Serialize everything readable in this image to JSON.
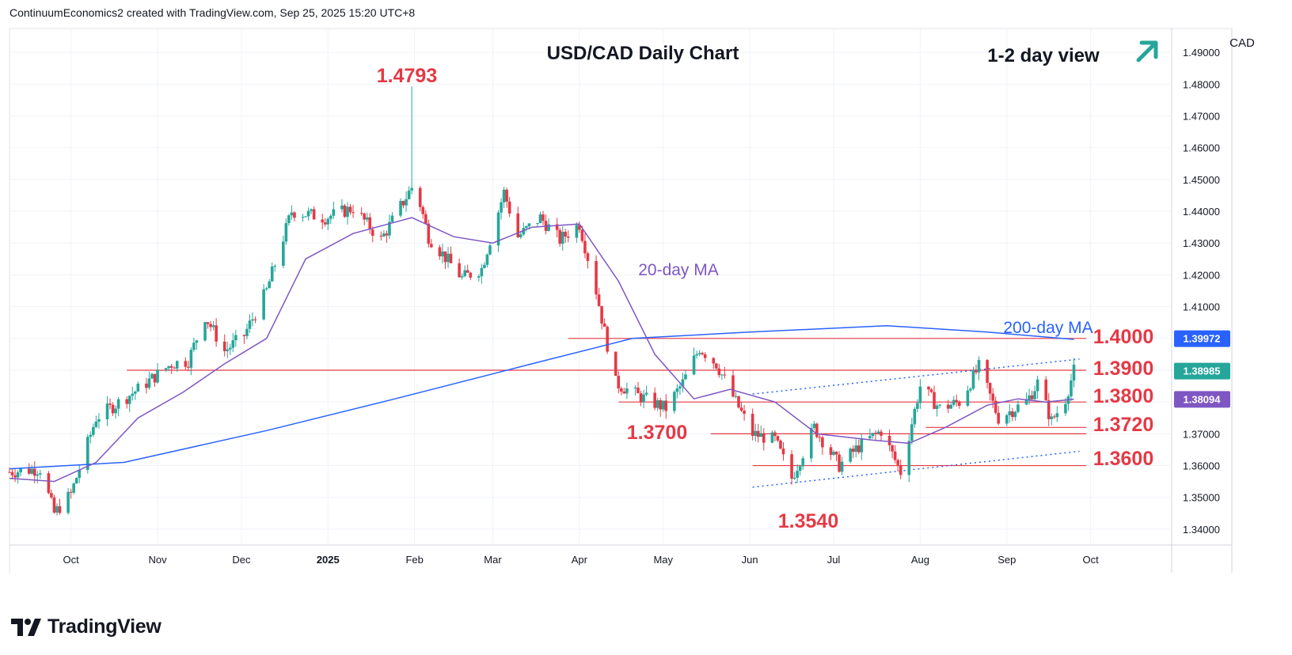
{
  "header": {
    "attribution": "ContinuumEconomics2 created with TradingView.com, Sep 25, 2025 15:20 UTC+8"
  },
  "footer": {
    "brand": "TradingView"
  },
  "colors": {
    "up": "#26a69a",
    "down": "#e53945",
    "ma20": "#7e57c2",
    "ma200": "#2962ff",
    "level": "#e53945",
    "trend": "#2962ff",
    "arrow": "#26a69a"
  },
  "chart_data": {
    "type": "candlestick",
    "title": "USD/CAD Daily Chart",
    "subtitle": "1-2 day view",
    "currency_label": "CAD",
    "ylim": [
      1.335,
      1.4975
    ],
    "y_ticks": [
      "1.34000",
      "1.35000",
      "1.36000",
      "1.37000",
      "1.38000",
      "1.39000",
      "1.40000",
      "1.41000",
      "1.42000",
      "1.43000",
      "1.44000",
      "1.45000",
      "1.46000",
      "1.47000",
      "1.48000",
      "1.49000"
    ],
    "x_ticks": [
      {
        "label": "Oct",
        "date": "2024-10-01"
      },
      {
        "label": "Nov",
        "date": "2024-11-01"
      },
      {
        "label": "Dec",
        "date": "2024-12-01"
      },
      {
        "label": "2025",
        "date": "2025-01-01",
        "bold": true
      },
      {
        "label": "Feb",
        "date": "2025-02-01"
      },
      {
        "label": "Mar",
        "date": "2025-03-01"
      },
      {
        "label": "Apr",
        "date": "2025-04-01"
      },
      {
        "label": "May",
        "date": "2025-05-01"
      },
      {
        "label": "Jun",
        "date": "2025-06-01"
      },
      {
        "label": "Jul",
        "date": "2025-07-01"
      },
      {
        "label": "Aug",
        "date": "2025-08-01"
      },
      {
        "label": "Sep",
        "date": "2025-09-01"
      },
      {
        "label": "Oct",
        "date": "2025-10-01"
      }
    ],
    "date_range": [
      "2024-09-09",
      "2025-10-30"
    ],
    "close_path": [
      [
        "2024-09-09",
        1.358
      ],
      [
        "2024-09-20",
        1.359
      ],
      [
        "2024-09-25",
        1.345
      ],
      [
        "2024-10-01",
        1.351
      ],
      [
        "2024-10-10",
        1.375
      ],
      [
        "2024-10-25",
        1.384
      ],
      [
        "2024-11-06",
        1.392
      ],
      [
        "2024-11-12",
        1.393
      ],
      [
        "2024-11-18",
        1.407
      ],
      [
        "2024-11-25",
        1.396
      ],
      [
        "2024-12-02",
        1.401
      ],
      [
        "2024-12-10",
        1.415
      ],
      [
        "2024-12-19",
        1.44
      ],
      [
        "2024-12-31",
        1.438
      ],
      [
        "2025-01-10",
        1.441
      ],
      [
        "2025-01-20",
        1.431
      ],
      [
        "2025-02-01",
        1.449
      ],
      [
        "2025-02-06",
        1.432
      ],
      [
        "2025-02-18",
        1.419
      ],
      [
        "2025-02-25",
        1.422
      ],
      [
        "2025-03-05",
        1.446
      ],
      [
        "2025-03-10",
        1.432
      ],
      [
        "2025-03-18",
        1.438
      ],
      [
        "2025-03-25",
        1.431
      ],
      [
        "2025-04-01",
        1.436
      ],
      [
        "2025-04-07",
        1.415
      ],
      [
        "2025-04-10",
        1.402
      ],
      [
        "2025-04-14",
        1.386
      ],
      [
        "2025-04-22",
        1.382
      ],
      [
        "2025-05-02",
        1.378
      ],
      [
        "2025-05-08",
        1.386
      ],
      [
        "2025-05-14",
        1.397
      ],
      [
        "2025-05-20",
        1.392
      ],
      [
        "2025-05-27",
        1.38
      ],
      [
        "2025-06-02",
        1.37
      ],
      [
        "2025-06-10",
        1.368
      ],
      [
        "2025-06-16",
        1.356
      ],
      [
        "2025-06-24",
        1.372
      ],
      [
        "2025-07-03",
        1.36
      ],
      [
        "2025-07-10",
        1.366
      ],
      [
        "2025-07-18",
        1.371
      ],
      [
        "2025-07-25",
        1.358
      ],
      [
        "2025-08-01",
        1.385
      ],
      [
        "2025-08-08",
        1.378
      ],
      [
        "2025-08-15",
        1.38
      ],
      [
        "2025-08-22",
        1.391
      ],
      [
        "2025-08-29",
        1.375
      ],
      [
        "2025-09-08",
        1.38
      ],
      [
        "2025-09-12",
        1.386
      ],
      [
        "2025-09-17",
        1.374
      ],
      [
        "2025-09-22",
        1.381
      ],
      [
        "2025-09-25",
        1.3898
      ]
    ],
    "ma20_path": [
      [
        "2024-09-09",
        1.356
      ],
      [
        "2024-09-25",
        1.355
      ],
      [
        "2024-10-10",
        1.361
      ],
      [
        "2024-10-25",
        1.375
      ],
      [
        "2024-11-10",
        1.383
      ],
      [
        "2024-11-25",
        1.392
      ],
      [
        "2024-12-10",
        1.4
      ],
      [
        "2024-12-24",
        1.425
      ],
      [
        "2025-01-10",
        1.433
      ],
      [
        "2025-01-31",
        1.438
      ],
      [
        "2025-02-15",
        1.432
      ],
      [
        "2025-03-01",
        1.43
      ],
      [
        "2025-03-15",
        1.435
      ],
      [
        "2025-04-01",
        1.436
      ],
      [
        "2025-04-15",
        1.418
      ],
      [
        "2025-04-28",
        1.395
      ],
      [
        "2025-05-12",
        1.381
      ],
      [
        "2025-05-25",
        1.384
      ],
      [
        "2025-06-10",
        1.38
      ],
      [
        "2025-06-25",
        1.37
      ],
      [
        "2025-07-15",
        1.368
      ],
      [
        "2025-07-28",
        1.367
      ],
      [
        "2025-08-10",
        1.372
      ],
      [
        "2025-08-25",
        1.379
      ],
      [
        "2025-09-05",
        1.381
      ],
      [
        "2025-09-15",
        1.38
      ],
      [
        "2025-09-25",
        1.3809
      ]
    ],
    "ma200_path": [
      [
        "2024-09-09",
        1.359
      ],
      [
        "2024-10-20",
        1.361
      ],
      [
        "2024-12-10",
        1.371
      ],
      [
        "2025-01-25",
        1.381
      ],
      [
        "2025-03-15",
        1.392
      ],
      [
        "2025-04-20",
        1.4
      ],
      [
        "2025-06-01",
        1.402
      ],
      [
        "2025-07-20",
        1.404
      ],
      [
        "2025-08-25",
        1.402
      ],
      [
        "2025-09-25",
        1.3997
      ]
    ],
    "series": [
      {
        "name": "20-day MA",
        "last": "1.38094"
      },
      {
        "name": "200-day MA",
        "last": "1.39972"
      }
    ],
    "last_price": "1.38985",
    "levels": [
      {
        "label": "1.4000",
        "value": 1.4,
        "from": "2025-03-28"
      },
      {
        "label": "1.3900",
        "value": 1.39,
        "from": "2024-10-21"
      },
      {
        "label": "1.3800",
        "value": 1.38,
        "from": "2025-04-15"
      },
      {
        "label": "1.3720",
        "value": 1.372,
        "from": "2025-08-03"
      },
      {
        "label": "1.3700",
        "value": 1.37,
        "from": "2025-05-18"
      },
      {
        "label": "1.3600",
        "value": 1.36,
        "from": "2025-06-02"
      }
    ],
    "trendlines": [
      {
        "from": [
          "2025-06-02",
          1.3825
        ],
        "to": [
          "2025-09-27",
          1.3935
        ]
      },
      {
        "from": [
          "2025-06-02",
          1.3532
        ],
        "to": [
          "2025-09-27",
          1.3645
        ]
      }
    ],
    "annotations": [
      {
        "label": "1.4793",
        "value": 1.4793,
        "date": "2025-02-01"
      },
      {
        "label": "1.3540",
        "value": 1.354,
        "date": "2025-06-19"
      }
    ]
  }
}
